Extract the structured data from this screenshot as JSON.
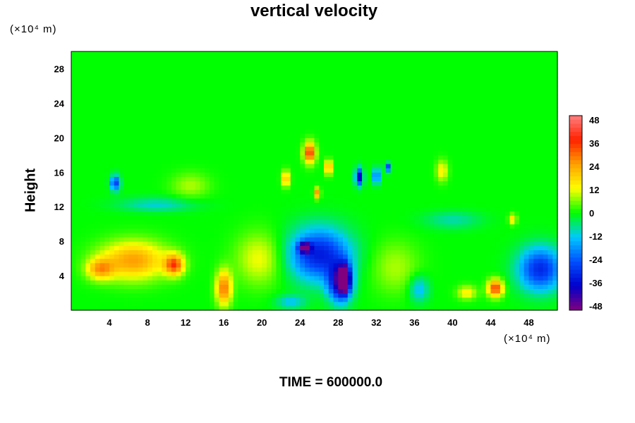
{
  "chart_data": {
    "type": "heatmap",
    "title": "vertical velocity",
    "ylabel": "Height",
    "xlabel": "",
    "x_unit": "(×10⁴ m)",
    "y_unit": "(×10⁴ m)",
    "footer": "TIME = 600000.0",
    "xlim": [
      0,
      51
    ],
    "ylim": [
      0,
      30
    ],
    "x_ticks": [
      4,
      8,
      12,
      16,
      20,
      24,
      28,
      32,
      36,
      40,
      44,
      48
    ],
    "y_ticks": [
      4,
      8,
      12,
      16,
      20,
      24,
      28
    ],
    "colorbar": {
      "min": -48,
      "max": 48,
      "ticks": [
        48,
        36,
        24,
        12,
        0,
        -12,
        -24,
        -36,
        -48
      ],
      "colors": [
        "#800080",
        "#0000cc",
        "#0050ff",
        "#00c8ff",
        "#00ff00",
        "#ffff00",
        "#ffa000",
        "#ff2000",
        "#ff8080"
      ]
    },
    "features": [
      {
        "x": 6.5,
        "y": 5.8,
        "value": 24,
        "sx": 3.5,
        "sy": 2.2
      },
      {
        "x": 3.0,
        "y": 4.8,
        "value": 20,
        "sx": 1.4,
        "sy": 1.2
      },
      {
        "x": 10.8,
        "y": 5.3,
        "value": 30,
        "sx": 1.0,
        "sy": 1.2
      },
      {
        "x": 16.0,
        "y": 2.6,
        "value": 28,
        "sx": 0.8,
        "sy": 2.0
      },
      {
        "x": 44.5,
        "y": 2.6,
        "value": 34,
        "sx": 0.8,
        "sy": 1.0
      },
      {
        "x": 41.5,
        "y": 2.1,
        "value": 14,
        "sx": 1.0,
        "sy": 0.8
      },
      {
        "x": 25.0,
        "y": 18.3,
        "value": 36,
        "sx": 0.6,
        "sy": 1.2
      },
      {
        "x": 27.0,
        "y": 16.6,
        "value": 34,
        "sx": 0.3,
        "sy": 0.8
      },
      {
        "x": 22.5,
        "y": 15.3,
        "value": 24,
        "sx": 0.4,
        "sy": 0.9
      },
      {
        "x": 25.8,
        "y": 13.6,
        "value": 26,
        "sx": 0.3,
        "sy": 0.6
      },
      {
        "x": 38.9,
        "y": 16.2,
        "value": 14,
        "sx": 0.6,
        "sy": 1.2
      },
      {
        "x": 46.3,
        "y": 10.6,
        "value": 16,
        "sx": 0.4,
        "sy": 0.6
      },
      {
        "x": 26.0,
        "y": 6.5,
        "value": -32,
        "sx": 3.2,
        "sy": 3.0
      },
      {
        "x": 24.5,
        "y": 7.3,
        "value": -40,
        "sx": 0.6,
        "sy": 0.6
      },
      {
        "x": 28.7,
        "y": 3.7,
        "value": -48,
        "sx": 0.5,
        "sy": 1.5
      },
      {
        "x": 28.2,
        "y": 3.2,
        "value": -38,
        "sx": 1.2,
        "sy": 2.2
      },
      {
        "x": 30.2,
        "y": 15.5,
        "value": -38,
        "sx": 0.4,
        "sy": 1.0
      },
      {
        "x": 32.0,
        "y": 15.6,
        "value": -32,
        "sx": 0.3,
        "sy": 0.9
      },
      {
        "x": 33.2,
        "y": 16.6,
        "value": -28,
        "sx": 0.3,
        "sy": 0.5
      },
      {
        "x": 4.6,
        "y": 14.8,
        "value": -28,
        "sx": 0.5,
        "sy": 0.9
      },
      {
        "x": 49.2,
        "y": 4.8,
        "value": -30,
        "sx": 2.3,
        "sy": 2.5
      },
      {
        "x": 36.5,
        "y": 2.5,
        "value": -14,
        "sx": 1.0,
        "sy": 1.5
      },
      {
        "x": 19.8,
        "y": 6.0,
        "value": 12,
        "sx": 2.5,
        "sy": 3.0
      },
      {
        "x": 34.0,
        "y": 5.0,
        "value": 8,
        "sx": 2.5,
        "sy": 3.0
      },
      {
        "x": 12.5,
        "y": 14.5,
        "value": 8,
        "sx": 2.0,
        "sy": 1.5
      },
      {
        "x": 9.0,
        "y": 12.3,
        "value": -10,
        "sx": 4.0,
        "sy": 0.8
      },
      {
        "x": 40.0,
        "y": 10.5,
        "value": -8,
        "sx": 3.0,
        "sy": 1.0
      },
      {
        "x": 23.0,
        "y": 1.0,
        "value": -12,
        "sx": 1.5,
        "sy": 0.8
      }
    ]
  }
}
